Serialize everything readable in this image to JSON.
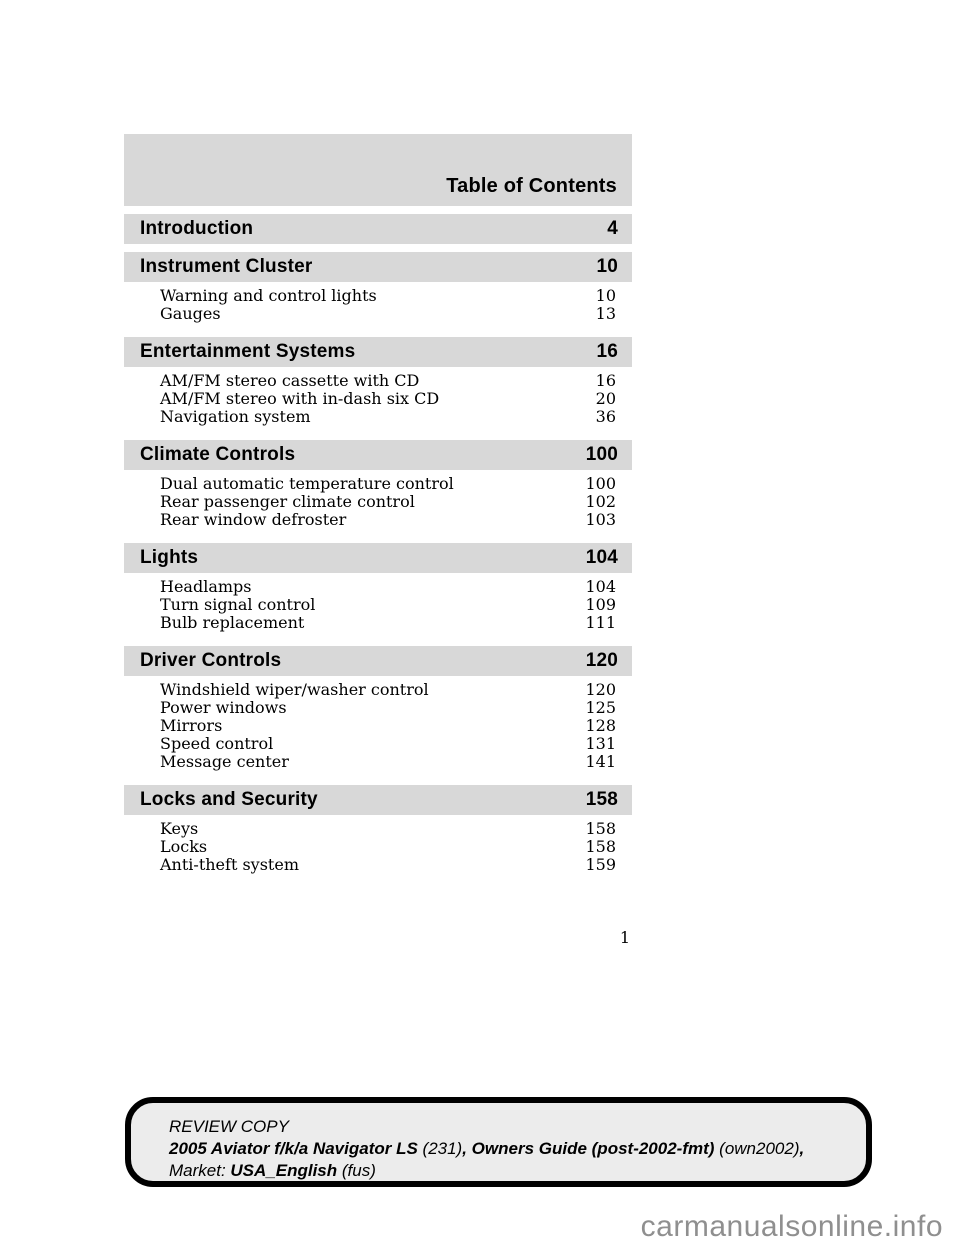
{
  "page": {
    "title": "Table of Contents",
    "page_number": "1",
    "watermark": "carmanualsonline.info"
  },
  "colors": {
    "section_bar_gray": "#d8d8d8",
    "review_box_fill": "#ececec",
    "review_box_border": "#000000",
    "watermark_gray": "#8f8f8f"
  },
  "toc": {
    "sections": [
      {
        "label": "Introduction",
        "page": "4",
        "items": []
      },
      {
        "label": "Instrument Cluster",
        "page": "10",
        "items": [
          {
            "label": "Warning and control lights",
            "page": "10"
          },
          {
            "label": "Gauges",
            "page": "13"
          }
        ]
      },
      {
        "label": "Entertainment Systems",
        "page": "16",
        "items": [
          {
            "label": "AM/FM stereo cassette with CD",
            "page": "16"
          },
          {
            "label": "AM/FM stereo with in-dash six CD",
            "page": "20"
          },
          {
            "label": "Navigation system",
            "page": "36"
          }
        ]
      },
      {
        "label": "Climate Controls",
        "page": "100",
        "items": [
          {
            "label": "Dual automatic temperature control",
            "page": "100"
          },
          {
            "label": "Rear passenger climate control",
            "page": "102"
          },
          {
            "label": "Rear window defroster",
            "page": "103"
          }
        ]
      },
      {
        "label": "Lights",
        "page": "104",
        "items": [
          {
            "label": "Headlamps",
            "page": "104"
          },
          {
            "label": "Turn signal control",
            "page": "109"
          },
          {
            "label": "Bulb replacement",
            "page": "111"
          }
        ]
      },
      {
        "label": "Driver Controls",
        "page": "120",
        "items": [
          {
            "label": "Windshield wiper/washer control",
            "page": "120"
          },
          {
            "label": "Power windows",
            "page": "125"
          },
          {
            "label": "Mirrors",
            "page": "128"
          },
          {
            "label": "Speed control",
            "page": "131"
          },
          {
            "label": "Message center",
            "page": "141"
          }
        ]
      },
      {
        "label": "Locks and Security",
        "page": "158",
        "items": [
          {
            "label": "Keys",
            "page": "158"
          },
          {
            "label": "Locks",
            "page": "158"
          },
          {
            "label": "Anti-theft system",
            "page": "159"
          }
        ]
      }
    ]
  },
  "footer": {
    "line1": "REVIEW COPY",
    "line2": [
      {
        "text": "2005 Aviator f/k/a Navigator LS ",
        "bold": true
      },
      {
        "text": "(231)",
        "bold": false
      },
      {
        "text": ", ",
        "bold": true
      },
      {
        "text": "Owners Guide (post-2002-fmt) ",
        "bold": true
      },
      {
        "text": "(own2002)",
        "bold": false
      },
      {
        "text": ",",
        "bold": true
      }
    ],
    "line3": [
      {
        "text": "Market: ",
        "bold": false
      },
      {
        "text": "USA_English ",
        "bold": true
      },
      {
        "text": "(fus)",
        "bold": false
      }
    ]
  }
}
